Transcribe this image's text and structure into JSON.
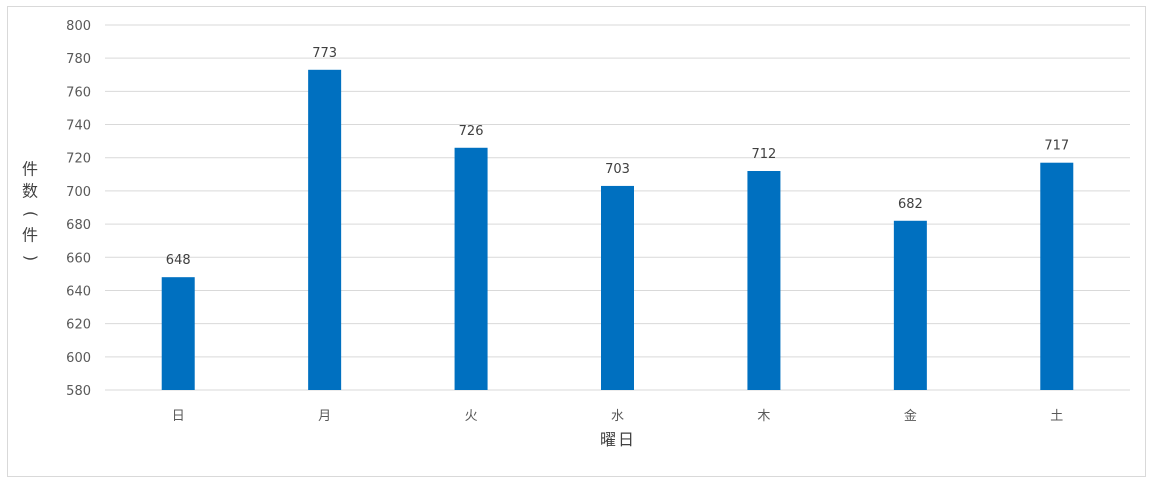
{
  "chart_data": {
    "type": "bar",
    "title": "",
    "xlabel": "曜日",
    "ylabel": "件数(件)",
    "categories": [
      "日",
      "月",
      "火",
      "水",
      "木",
      "金",
      "土"
    ],
    "values": [
      648,
      773,
      726,
      703,
      712,
      682,
      717
    ],
    "ylim": [
      580,
      800
    ],
    "yticks": [
      580,
      600,
      620,
      640,
      660,
      680,
      700,
      720,
      740,
      760,
      780,
      800
    ],
    "grid": true,
    "legend": "none",
    "bar_color": "#0070c0",
    "data_labels": true
  },
  "colors": {
    "gridline": "#d9d9d9",
    "axis_text": "#595959",
    "frame_border": "#d9d9d9"
  }
}
